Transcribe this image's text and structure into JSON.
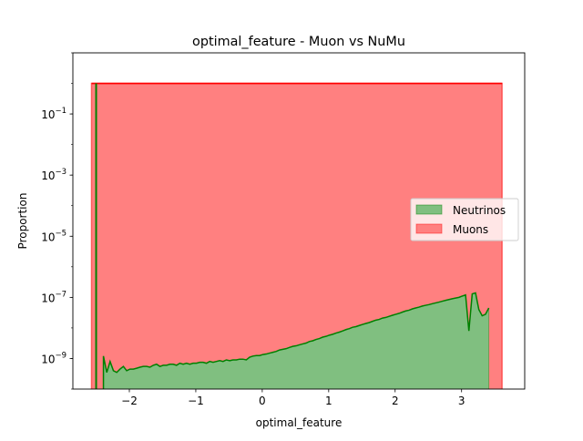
{
  "chart_data": {
    "type": "area",
    "title": "optimal_feature - Muon vs NuMu",
    "xlabel": "optimal_feature",
    "ylabel": "Proportion",
    "xlim": [
      -2.85,
      3.95
    ],
    "ylim": [
      1e-10,
      10
    ],
    "yscale": "log",
    "xticks": [
      -2,
      -1,
      0,
      1,
      2,
      3
    ],
    "xtick_labels": [
      "−2",
      "−1",
      "0",
      "1",
      "2",
      "3"
    ],
    "yticks": [
      1e-09,
      1e-07,
      1e-05,
      0.001,
      0.1
    ],
    "ytick_labels": [
      {
        "base": "10",
        "exp": "−9"
      },
      {
        "base": "10",
        "exp": "−7"
      },
      {
        "base": "10",
        "exp": "−5"
      },
      {
        "base": "10",
        "exp": "−3"
      },
      {
        "base": "10",
        "exp": "−1"
      }
    ],
    "grid": false,
    "legend": {
      "placement": "center-right",
      "entries": [
        "Neutrinos",
        "Muons"
      ]
    },
    "series": [
      {
        "name": "Muons",
        "color": "#ff0000",
        "fill_color": "#ff8080",
        "x": [
          -2.57,
          3.61
        ],
        "y": [
          1.0,
          1.0
        ]
      },
      {
        "name": "Neutrinos",
        "color": "#008000",
        "fill_color": "#80bf80",
        "spike": {
          "x": -2.5,
          "y": 1.0
        },
        "x": [
          -2.39,
          -2.34,
          -2.29,
          -2.24,
          -2.19,
          -2.14,
          -2.09,
          -2.04,
          -1.99,
          -1.94,
          -1.89,
          -1.84,
          -1.79,
          -1.74,
          -1.69,
          -1.64,
          -1.59,
          -1.54,
          -1.49,
          -1.44,
          -1.39,
          -1.34,
          -1.29,
          -1.24,
          -1.19,
          -1.14,
          -1.09,
          -1.04,
          -0.99,
          -0.94,
          -0.89,
          -0.84,
          -0.79,
          -0.74,
          -0.69,
          -0.64,
          -0.59,
          -0.54,
          -0.49,
          -0.44,
          -0.39,
          -0.34,
          -0.29,
          -0.24,
          -0.19,
          -0.14,
          -0.09,
          -0.04,
          0.01,
          0.06,
          0.11,
          0.16,
          0.21,
          0.26,
          0.31,
          0.36,
          0.41,
          0.46,
          0.51,
          0.56,
          0.61,
          0.66,
          0.71,
          0.76,
          0.81,
          0.86,
          0.91,
          0.96,
          1.01,
          1.06,
          1.11,
          1.16,
          1.21,
          1.26,
          1.31,
          1.36,
          1.41,
          1.46,
          1.51,
          1.56,
          1.61,
          1.66,
          1.71,
          1.76,
          1.81,
          1.86,
          1.91,
          1.96,
          2.01,
          2.06,
          2.11,
          2.16,
          2.21,
          2.26,
          2.31,
          2.36,
          2.41,
          2.46,
          2.51,
          2.56,
          2.61,
          2.66,
          2.71,
          2.76,
          2.81,
          2.86,
          2.91,
          2.96,
          3.01,
          3.06,
          3.11,
          3.16,
          3.21,
          3.26,
          3.31,
          3.36,
          3.41
        ],
        "y": [
          1.2e-09,
          3.5e-10,
          8e-10,
          4e-10,
          3.5e-10,
          4.5e-10,
          5.5e-10,
          4e-10,
          4.5e-10,
          4.5e-10,
          4.8e-10,
          5.2e-10,
          5.5e-10,
          5.5e-10,
          5.2e-10,
          6e-10,
          6.5e-10,
          5.5e-10,
          6e-10,
          6e-10,
          6.5e-10,
          6.5e-10,
          6e-10,
          7e-10,
          6.5e-10,
          7e-10,
          6.5e-10,
          7e-10,
          7e-10,
          7.5e-10,
          7.5e-10,
          7e-10,
          8e-10,
          7.5e-10,
          8e-10,
          8.5e-10,
          8e-10,
          9e-10,
          8.5e-10,
          9e-10,
          9e-10,
          9.5e-10,
          9.5e-10,
          9e-10,
          1.1e-09,
          1.2e-09,
          1.25e-09,
          1.25e-09,
          1.35e-09,
          1.4e-09,
          1.5e-09,
          1.6e-09,
          1.7e-09,
          1.9e-09,
          2e-09,
          2.1e-09,
          2.3e-09,
          2.5e-09,
          2.6e-09,
          2.8e-09,
          3e-09,
          3.2e-09,
          3.6e-09,
          3.8e-09,
          4.2e-09,
          4.5e-09,
          5e-09,
          5.3e-09,
          5.8e-09,
          6.2e-09,
          6.8e-09,
          7.3e-09,
          8e-09,
          8.8e-09,
          9.5e-09,
          1.05e-08,
          1.1e-08,
          1.2e-08,
          1.3e-08,
          1.4e-08,
          1.5e-08,
          1.65e-08,
          1.8e-08,
          1.9e-08,
          2.1e-08,
          2.2e-08,
          2.4e-08,
          2.6e-08,
          2.8e-08,
          3e-08,
          3.3e-08,
          3.6e-08,
          3.8e-08,
          4.2e-08,
          4.5e-08,
          4.8e-08,
          5.2e-08,
          5.5e-08,
          5.8e-08,
          6.2e-08,
          6.6e-08,
          7e-08,
          7.5e-08,
          8e-08,
          8.5e-08,
          9e-08,
          9.5e-08,
          1e-07,
          1.1e-07,
          1.2e-07,
          8e-09,
          1.3e-07,
          1.4e-07,
          4e-08,
          2.5e-08,
          2.8e-08,
          4.5e-08
        ]
      }
    ]
  }
}
